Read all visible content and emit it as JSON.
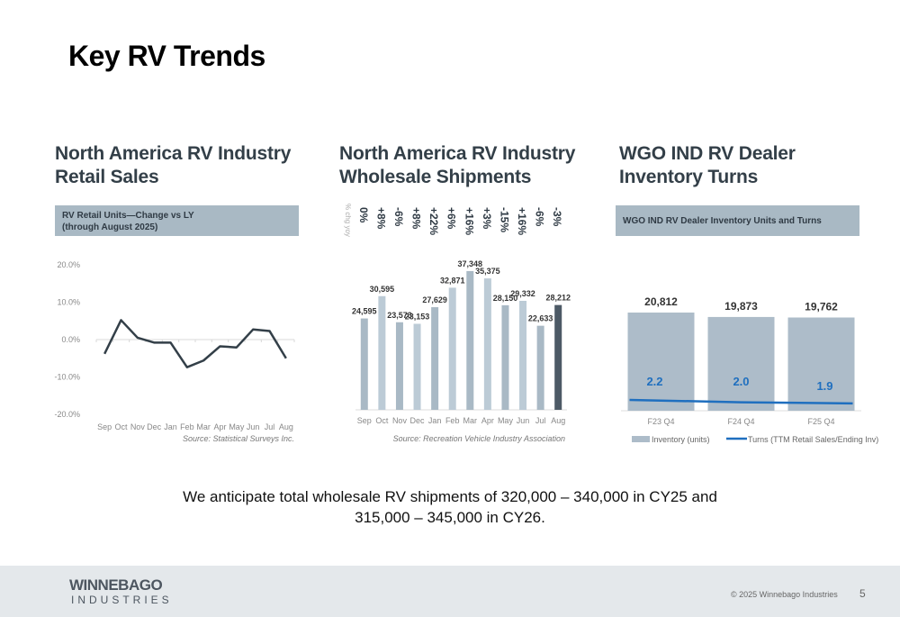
{
  "page": {
    "title": "Key RV Trends",
    "outlook_line1": "We anticipate total wholesale RV shipments of 320,000 – 340,000 in CY25 and",
    "outlook_line2": "315,000 – 345,000 in CY26."
  },
  "sections": {
    "retail": {
      "title_line1": "North America RV Industry",
      "title_line2": "Retail Sales",
      "banner_line1": "RV Retail Units—Change vs LY",
      "banner_line2": "(through August 2025)"
    },
    "wholesale": {
      "title_line1": "North America RV Industry",
      "title_line2": "Wholesale Shipments"
    },
    "inventory": {
      "title_line1": "WGO IND RV Dealer",
      "title_line2": "Inventory Turns",
      "banner": "WGO IND RV Dealer Inventory Units and Turns"
    }
  },
  "footer": {
    "logo_top": "WINNEBAGO",
    "logo_bottom": "INDUSTRIES",
    "copyright": "© 2025 Winnebago Industries",
    "page_number": "5"
  },
  "colors": {
    "line": "#333f48",
    "bar_dark_shade": "#a9b9c5",
    "bar_light_shade": "#bccbd6",
    "bar_highlight": "#4d5a66",
    "inventory_bar": "#adbcc9",
    "turns_line": "#1f6fbf"
  },
  "chart_data": [
    {
      "type": "line",
      "title": "RV Retail Units—Change vs LY (through August 2025)",
      "categories": [
        "Sep",
        "Oct",
        "Nov",
        "Dec",
        "Jan",
        "Feb",
        "Mar",
        "Apr",
        "May",
        "Jun",
        "Jul",
        "Aug"
      ],
      "values": [
        -3.8,
        5.2,
        0.5,
        -0.8,
        -0.8,
        -7.4,
        -5.6,
        -1.8,
        -2.1,
        2.7,
        2.3,
        -5.0
      ],
      "yticks": [
        "20.0%",
        "10.0%",
        "0.0%",
        "-10.0%",
        "-20.0%"
      ],
      "ylim": [
        -20,
        20
      ],
      "xlabel": "",
      "ylabel": "",
      "source": "Source:  Statistical Surveys Inc."
    },
    {
      "type": "bar",
      "title": "North America RV Industry Wholesale Shipments",
      "categories": [
        "Sep",
        "Oct",
        "Nov",
        "Dec",
        "Jan",
        "Feb",
        "Mar",
        "Apr",
        "May",
        "Jun",
        "Jul",
        "Aug"
      ],
      "values": [
        24595,
        30595,
        23573,
        23153,
        27629,
        32871,
        37348,
        35375,
        28150,
        29332,
        22633,
        28212
      ],
      "value_labels": [
        "24,595",
        "30,595",
        "23,573",
        "23,153",
        "27,629",
        "32,871",
        "37,348",
        "35,375",
        "28,150",
        "29,332",
        "22,633",
        "28,212"
      ],
      "yoy_axis_label": "% chg yoy",
      "yoy_change": [
        "0%",
        "+8%",
        "-6%",
        "+8%",
        "+22%",
        "+6%",
        "+16%",
        "+3%",
        "-15%",
        "+16%",
        "-6%",
        "-3%"
      ],
      "highlight": "Aug",
      "ylim": [
        0,
        40000
      ],
      "source": "Source:  Recreation Vehicle Industry Association"
    },
    {
      "type": "bar",
      "title": "WGO IND RV Dealer Inventory Units and Turns",
      "categories": [
        "F23 Q4",
        "F24 Q4",
        "F25 Q4"
      ],
      "series": [
        {
          "name": "Inventory (units)",
          "type": "bar",
          "values": [
            20812,
            19873,
            19762
          ],
          "labels": [
            "20,812",
            "19,873",
            "19,762"
          ]
        },
        {
          "name": "Turns (TTM Retail Sales/Ending Inv)",
          "type": "line",
          "values": [
            2.2,
            2.0,
            1.9
          ],
          "labels": [
            "2.2",
            "2.0",
            "1.9"
          ]
        }
      ],
      "legend_position": "bottom"
    }
  ]
}
